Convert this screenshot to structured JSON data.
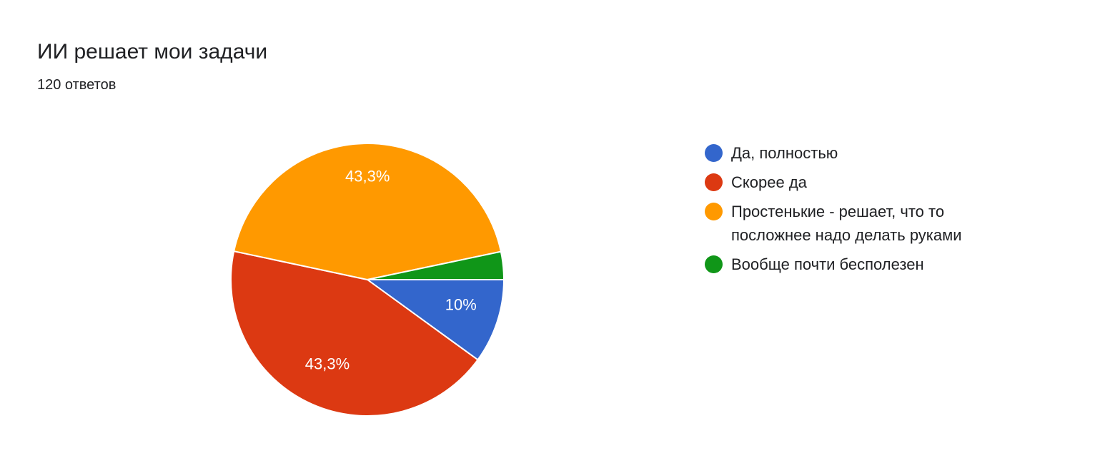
{
  "chart_data": {
    "type": "pie",
    "title": "ИИ решает мои задачи",
    "subtitle": "120 ответов",
    "legend_position": "right",
    "slices": [
      {
        "label": "Да, полностью",
        "percent": 10,
        "value_label": "10%",
        "color": "#3366cc"
      },
      {
        "label": "Скорее да",
        "percent": 43.3,
        "value_label": "43,3%",
        "color": "#dc3912"
      },
      {
        "label": "Простенькие - решает, что то посложнее надо делать руками",
        "percent": 43.3,
        "value_label": "43,3%",
        "color": "#ff9900"
      },
      {
        "label": "Вообще почти бесполезен",
        "percent": 3.3,
        "value_label": "",
        "color": "#109618"
      }
    ]
  }
}
